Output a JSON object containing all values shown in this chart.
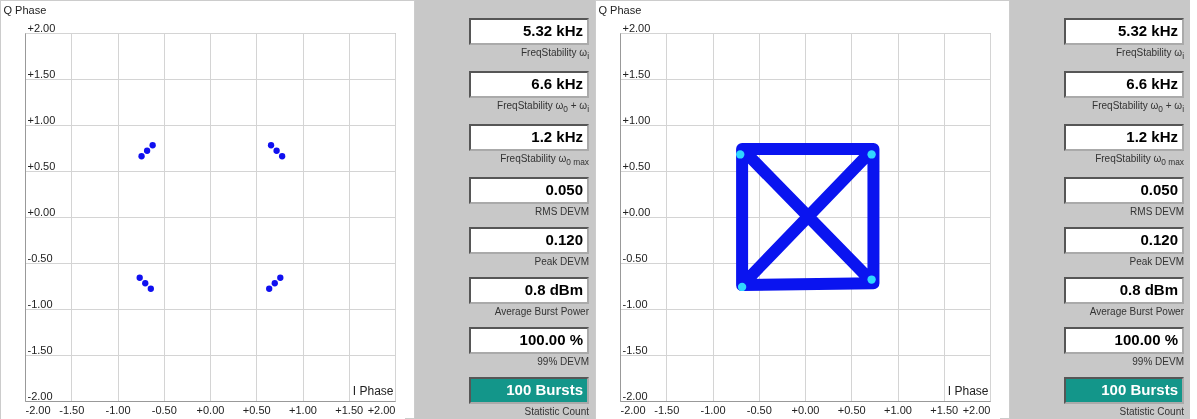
{
  "chart_data": [
    {
      "type": "scatter",
      "xlabel": "I Phase",
      "ylabel": "Q Phase",
      "marker": "circle",
      "grid": true,
      "xlim": [
        -2,
        2
      ],
      "ylim": [
        -2,
        2
      ],
      "xticks": [
        {
          "value": -2,
          "label": "-2.00"
        },
        {
          "value": -1.5,
          "label": "-1.50"
        },
        {
          "value": -1,
          "label": "-1.00"
        },
        {
          "value": -0.5,
          "label": "-0.50"
        },
        {
          "value": 0,
          "label": "+0.00"
        },
        {
          "value": 0.5,
          "label": "+0.50"
        },
        {
          "value": 1,
          "label": "+1.00"
        },
        {
          "value": 1.5,
          "label": "+1.50"
        },
        {
          "value": 2,
          "label": "+2.00"
        }
      ],
      "yticks": [
        {
          "value": -2,
          "label": "-2.00"
        },
        {
          "value": -1.5,
          "label": "-1.50"
        },
        {
          "value": -1,
          "label": "-1.00"
        },
        {
          "value": -0.5,
          "label": "-0.50"
        },
        {
          "value": 0,
          "label": "+0.00"
        },
        {
          "value": 0.5,
          "label": "+0.50"
        },
        {
          "value": 1,
          "label": "+1.00"
        },
        {
          "value": 1.5,
          "label": "+1.50"
        },
        {
          "value": 2,
          "label": "+2.00"
        }
      ],
      "series": [
        {
          "color": "#1010f0",
          "x": [
            -0.74,
            -0.68,
            -0.62,
            0.66,
            0.72,
            0.78,
            -0.76,
            -0.7,
            -0.64,
            0.64,
            0.7,
            0.76
          ],
          "values": [
            0.66,
            0.72,
            0.78,
            0.78,
            0.72,
            0.66,
            -0.66,
            -0.72,
            -0.78,
            -0.78,
            -0.72,
            -0.66
          ]
        }
      ]
    },
    {
      "type": "other",
      "annotations": [
        "5.32 kHz",
        "FreqStability ω$_{i}$",
        "6.6 kHz",
        "FreqStability ω$_{0}$ + ω$_{i}$",
        "1.2 kHz",
        "FreqStability ω$_{0 max}$",
        "0.050",
        "RMS DEVM",
        "0.120",
        "Peak DEVM",
        "0.8 dBm",
        "Average Burst Power",
        "100.00 %",
        "99% DEVM",
        "100 Bursts",
        "Statistic Count"
      ]
    },
    {
      "type": "line",
      "xlabel": "I Phase",
      "ylabel": "Q Phase",
      "grid": true,
      "line_style": "solid",
      "xlim": [
        -2,
        2
      ],
      "ylim": [
        -2,
        2
      ],
      "xticks": [
        {
          "value": -2,
          "label": "-2.00"
        },
        {
          "value": -1.5,
          "label": "-1.50"
        },
        {
          "value": -1,
          "label": "-1.00"
        },
        {
          "value": -0.5,
          "label": "-0.50"
        },
        {
          "value": 0,
          "label": "+0.00"
        },
        {
          "value": 0.5,
          "label": "+0.50"
        },
        {
          "value": 1,
          "label": "+1.00"
        },
        {
          "value": 1.5,
          "label": "+1.50"
        },
        {
          "value": 2,
          "label": "+2.00"
        }
      ],
      "yticks": [
        {
          "value": -2,
          "label": "-2.00"
        },
        {
          "value": -1.5,
          "label": "-1.50"
        },
        {
          "value": -1,
          "label": "-1.00"
        },
        {
          "value": -0.5,
          "label": "-0.50"
        },
        {
          "value": 0,
          "label": "+0.00"
        },
        {
          "value": 0.5,
          "label": "+0.50"
        },
        {
          "value": 1,
          "label": "+1.00"
        },
        {
          "value": 1.5,
          "label": "+1.50"
        },
        {
          "value": 2,
          "label": "+2.00"
        }
      ],
      "series": [
        {
          "type": "line",
          "color": "#0a14f0",
          "x": [
            -0.68,
            0.74,
            0.74,
            -0.68,
            -0.68,
            0.74,
            0.74,
            -0.68
          ],
          "values": [
            0.74,
            0.74,
            -0.72,
            -0.74,
            0.74,
            -0.72,
            0.74,
            -0.74
          ]
        },
        {
          "type": "scatter",
          "marker": "circle",
          "color": "#30d8ff",
          "x": [
            -0.7,
            0.72,
            0.72,
            -0.68
          ],
          "values": [
            0.68,
            0.68,
            -0.68,
            -0.76
          ]
        }
      ]
    },
    {
      "type": "other",
      "annotations": [
        "5.32 kHz",
        "FreqStability ω$_{i}$",
        "6.6 kHz",
        "FreqStability ω$_{0}$ + ω$_{i}$",
        "1.2 kHz",
        "FreqStability ω$_{0 max}$",
        "0.050",
        "RMS DEVM",
        "0.120",
        "Peak DEVM",
        "0.8 dBm",
        "Average Burst Power",
        "100.00 %",
        "99% DEVM",
        "100 Bursts",
        "Statistic Count"
      ]
    }
  ]
}
